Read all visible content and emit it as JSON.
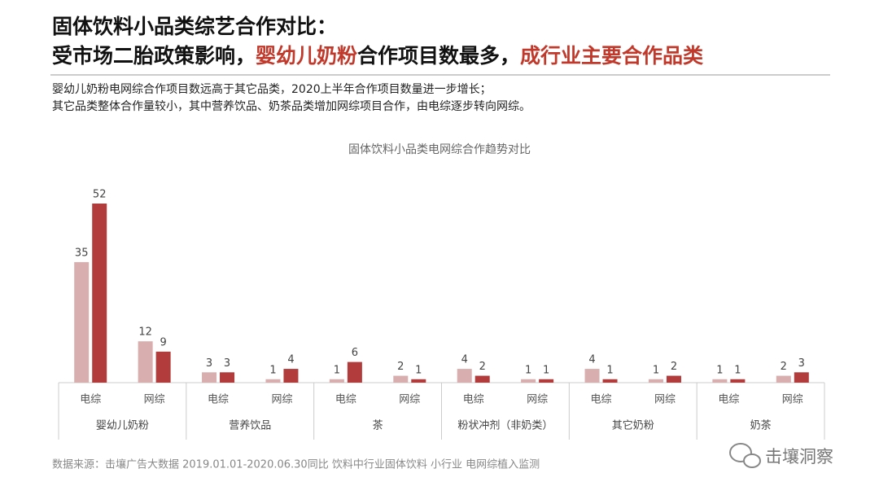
{
  "header": {
    "title_line1": "固体饮料小品类综艺合作对比：",
    "title_line2": [
      "受市场二胎政策影响，",
      "婴幼儿奶粉",
      "合作项目数最多，",
      "成行业主要合作品类"
    ],
    "subtitle": [
      "婴幼儿奶粉电网综合作项目数远高于其它品类，2020上半年合作项目数量进一步增长；",
      "其它品类整体合作量较小，其中营养饮品、奶茶品类增加网综项目合作，由电综逐步转向网综。"
    ]
  },
  "chart_data": {
    "type": "bar",
    "title": "固体饮料小品类电网综合作趋势对比",
    "categories": [
      "电综",
      "网综",
      "电综",
      "网综",
      "电综",
      "网综",
      "电综",
      "网综",
      "电综",
      "网综",
      "电综",
      "网综"
    ],
    "groups": [
      "婴幼儿奶粉",
      "营养饮品",
      "茶",
      "粉状冲剂（非奶类）",
      "其它奶粉",
      "奶茶"
    ],
    "series": [
      {
        "color": "#d9aeae",
        "values": [
          35,
          12,
          3,
          1,
          1,
          2,
          4,
          1,
          4,
          1,
          1,
          2
        ]
      },
      {
        "color": "#b23b3b",
        "values": [
          52,
          9,
          3,
          4,
          6,
          1,
          2,
          1,
          1,
          2,
          1,
          3
        ]
      }
    ]
  },
  "footnote": "数据来源：击壤广告大数据 2019.01.01-2020.06.30同比 饮料中行业固体饮料 小行业 电网综植入监测",
  "brand": "击壤洞察"
}
